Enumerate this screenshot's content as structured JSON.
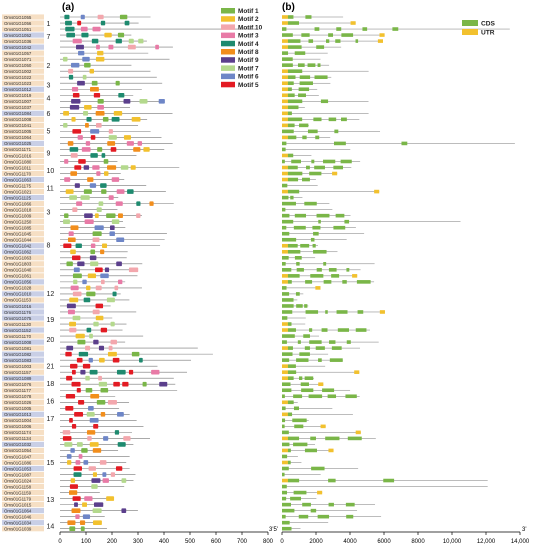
{
  "panels": {
    "a": {
      "label": "(a)"
    },
    "b": {
      "label": "(b)"
    }
  },
  "motif_legend": {
    "entries": [
      {
        "name": "Motif 1",
        "color": "#7ab648"
      },
      {
        "name": "Motif 2",
        "color": "#f2c12e"
      },
      {
        "name": "Motif 10",
        "color": "#f3a7ad"
      },
      {
        "name": "Motif 3",
        "color": "#e87aa6"
      },
      {
        "name": "Motif 4",
        "color": "#1e8a6f"
      },
      {
        "name": "Motif 8",
        "color": "#f28e1c"
      },
      {
        "name": "Motif 9",
        "color": "#5b3f8c"
      },
      {
        "name": "Motif 7",
        "color": "#b4d98d"
      },
      {
        "name": "Motif 6",
        "color": "#6e86c7"
      },
      {
        "name": "Motif 5",
        "color": "#e31b23"
      }
    ]
  },
  "gene_legend": {
    "entries": [
      {
        "name": "CDS",
        "color": "#7ab648"
      },
      {
        "name": "UTR",
        "color": "#f2c12e"
      }
    ]
  },
  "axis_a": {
    "ticks": [
      "0",
      "100",
      "200",
      "300",
      "400",
      "500",
      "600",
      "700",
      "800"
    ],
    "max": 800
  },
  "axis_b": {
    "start_label": "5'",
    "end_label": "3'",
    "left_label": "3'5'",
    "ticks": [
      "0",
      "2000",
      "4000",
      "6000",
      "8000",
      "10,000",
      "12,000",
      "14,000"
    ],
    "max": 14000
  },
  "groups": [
    "1",
    "7",
    "2",
    "3",
    "4",
    "6",
    "5",
    "9",
    "10",
    "11",
    "3",
    "8",
    "12",
    "19",
    "20",
    "21",
    "18",
    "16",
    "17",
    "15",
    "13",
    "14"
  ],
  "genes": [
    "Oms01G1055",
    "Oms01G1056",
    "Oms01G1051",
    "Oms01G1052",
    "Oms01G1036",
    "Oms01G1042",
    "Oms01G1057",
    "Oms01G1071",
    "Oms01G1050",
    "Oms01G1002",
    "Oms01G1022",
    "Oms01G1023",
    "Oms01G1012",
    "Oms01G1019",
    "Oms01G1007",
    "Oms01G1037",
    "Oms01G1084",
    "Oms01G1008",
    "Oms01G1041",
    "Oms01G1005",
    "Oms01G1064",
    "Oms01G1025",
    "Oms01G1171",
    "Oms01G1016",
    "Oms01G1080",
    "Oms01G1011",
    "Oms01G1170",
    "Oms01G1063",
    "Oms01G1175",
    "Oms01G1021",
    "Oms01G1125",
    "Oms01G1066",
    "Oms01G1018",
    "Oms01G1009",
    "Oms01G1250",
    "Oms01G1085",
    "Oms01G1045",
    "Oms01G1044",
    "Oms01G1042",
    "Oms01G1062",
    "Oms01G1063",
    "Oms01G1803",
    "Oms01G1040",
    "Oms01G1061",
    "Oms01G1056",
    "Oms01G1028",
    "Oms01G1010",
    "Oms01G1153",
    "Oms01G1016",
    "Oms01G1176",
    "Oms01G1075",
    "Oms01G1130",
    "Oms01G1152",
    "Oms01G1170",
    "Oms01G1008",
    "Oms01G1081",
    "Oms01G1082",
    "Oms01G1083",
    "Oms01G1003",
    "Oms01G1157",
    "Oms01G1089",
    "Oms01G1076",
    "Oms01G1177",
    "Oms01G1078",
    "Oms01G1026",
    "Oms01G1005",
    "Oms01G1013",
    "Oms01G1004",
    "Oms01G1006",
    "Oms01G1174",
    "Oms01G1134",
    "Oms01G1032",
    "Oms01G1054",
    "Oms01G1047",
    "Oms01G1086",
    "Oms01G1053",
    "Oms01G1087",
    "Oms01G1024",
    "Oms01G1158",
    "Oms01G1159",
    "Oms01G1179",
    "Oms01G1015",
    "Oms01G1064",
    "Oms01G1046",
    "Oms01G1034",
    "Oms01G1039"
  ]
}
